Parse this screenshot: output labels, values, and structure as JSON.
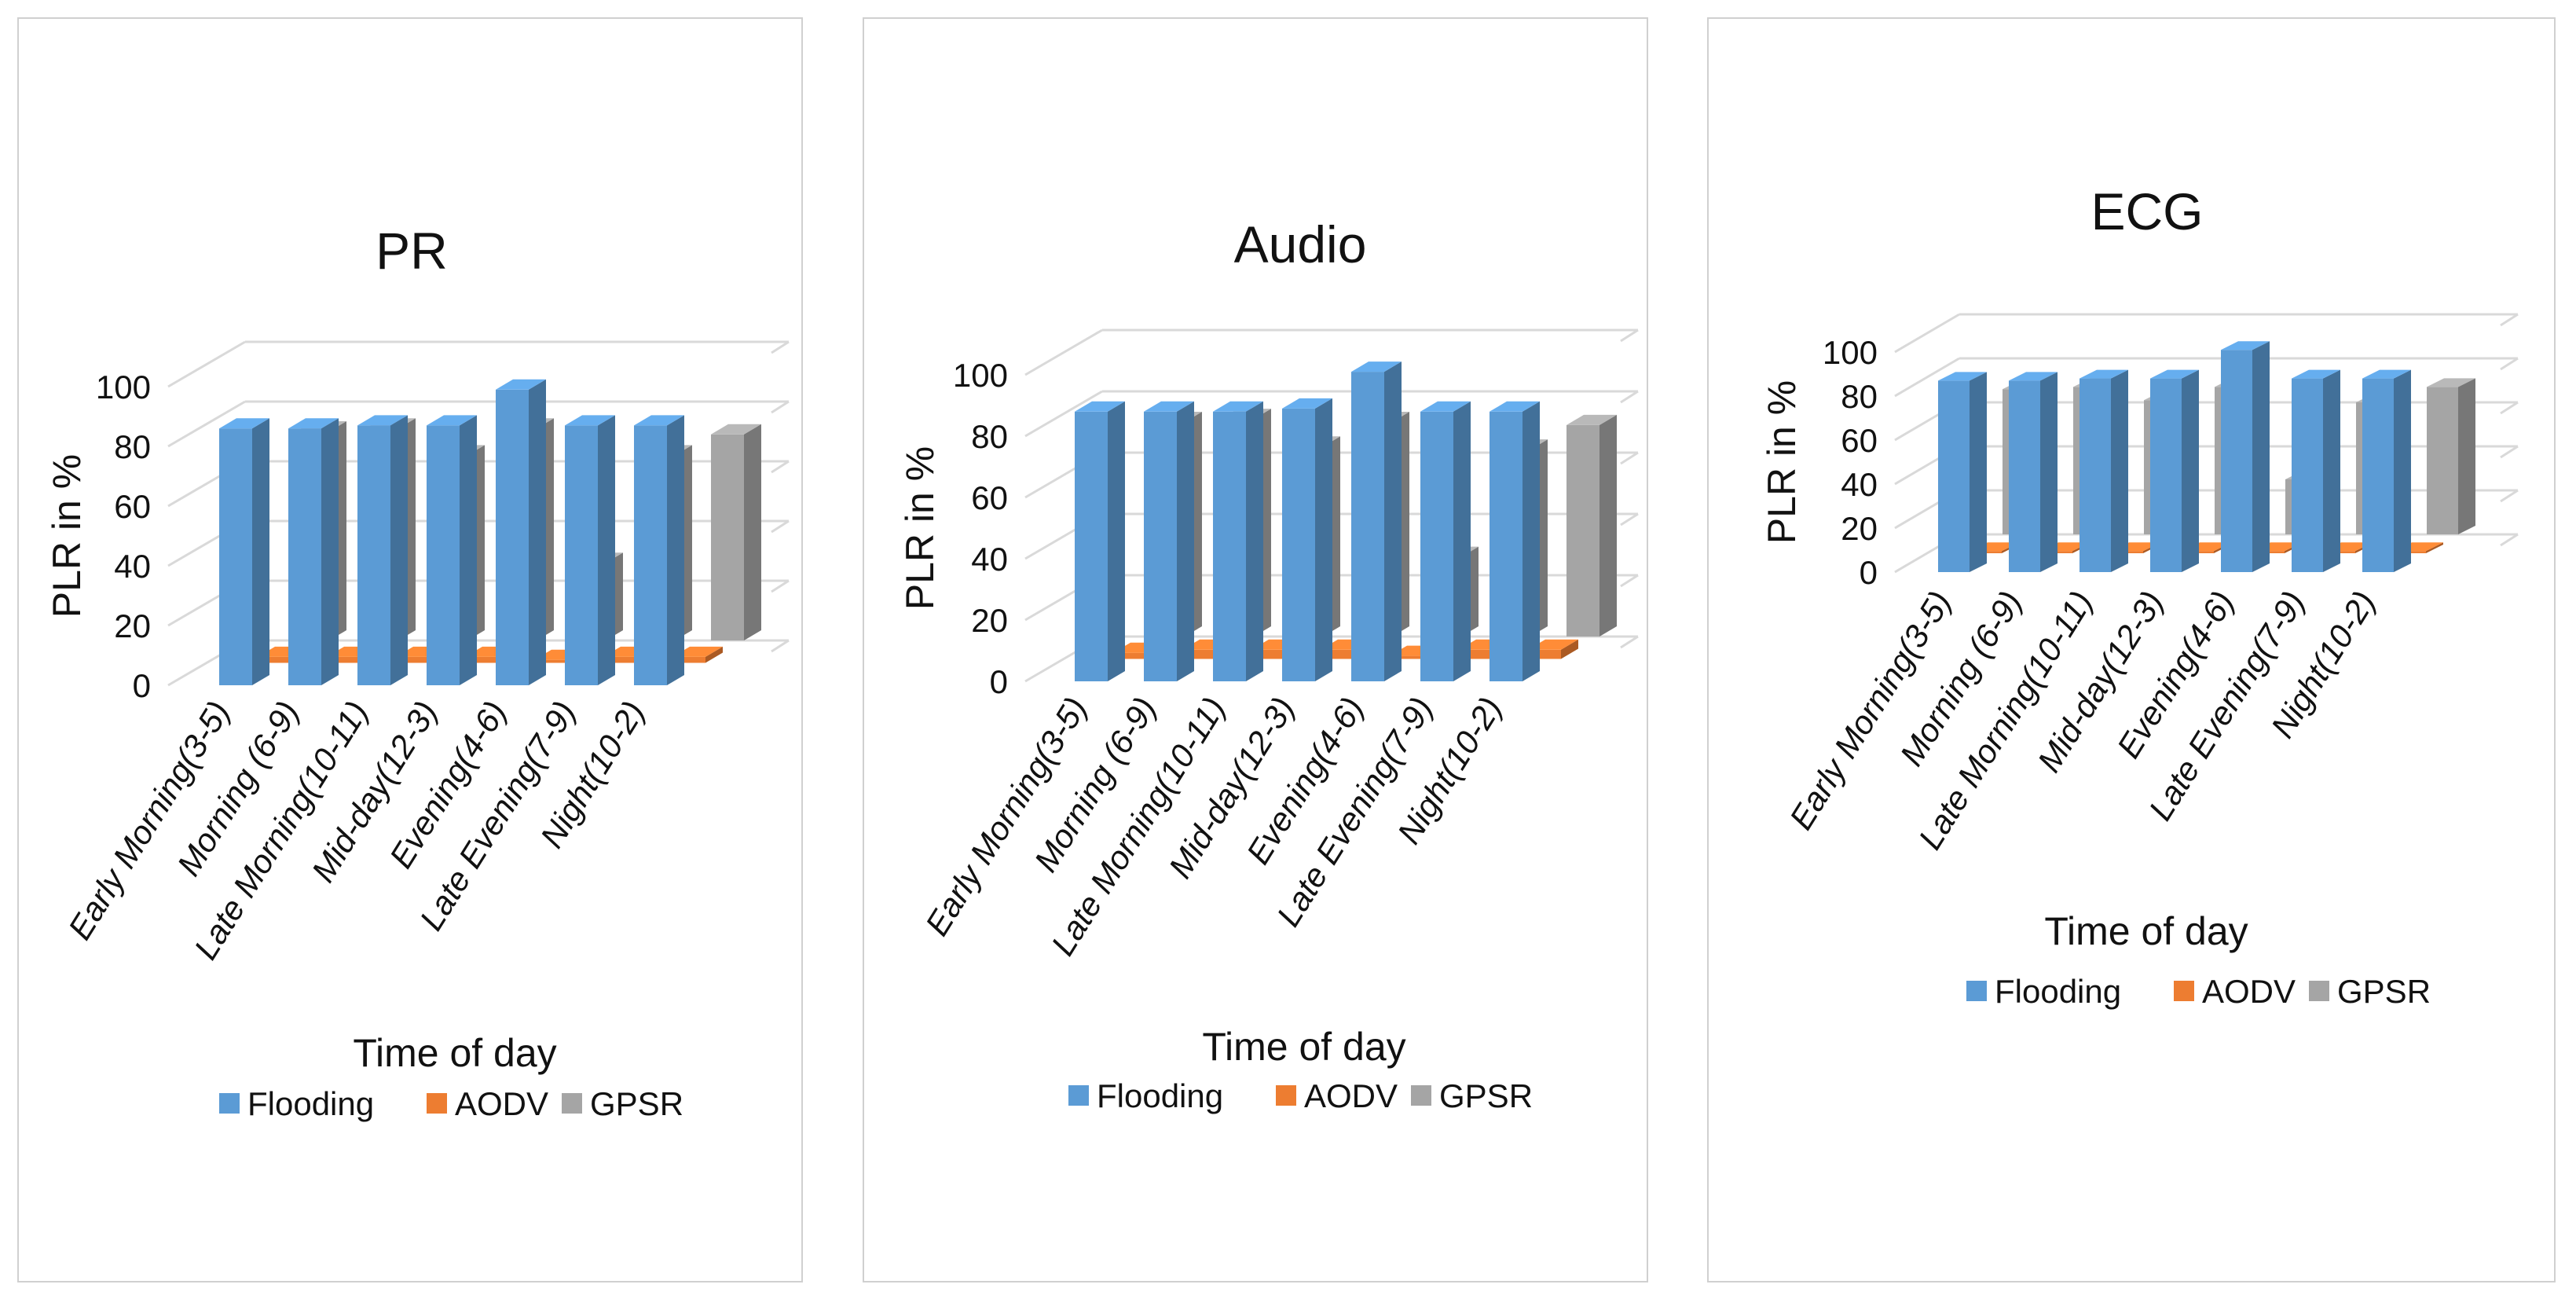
{
  "chart_data": [
    {
      "type": "bar",
      "title": "PR",
      "xlabel": "Time of day",
      "ylabel": "PLR in %",
      "ylim": [
        0,
        100
      ],
      "yticks": [
        "0",
        "20",
        "40",
        "60",
        "80",
        "100"
      ],
      "categories": [
        "Early Morning(3-5)",
        "Morning (6-9)",
        "Late Morning(10-11)",
        "Mid-day(12-3)",
        "Evening(4-6)",
        "Late Evening(7-9)",
        "Night(10-2)"
      ],
      "series": [
        {
          "name": "Flooding",
          "values": [
            86,
            86,
            87,
            87,
            99,
            87,
            87
          ]
        },
        {
          "name": "AODV",
          "values": [
            2,
            2,
            2,
            2,
            1,
            2,
            2
          ]
        },
        {
          "name": "GPSR",
          "values": [
            70,
            71,
            62,
            71,
            26,
            62,
            69
          ]
        }
      ],
      "legend": "bottom"
    },
    {
      "type": "bar",
      "title": "Audio",
      "xlabel": "Time of day",
      "ylabel": "PLR in %",
      "ylim": [
        0,
        100
      ],
      "yticks": [
        "0",
        "20",
        "40",
        "60",
        "80",
        "100"
      ],
      "categories": [
        "Early Morning(3-5)",
        "Morning (6-9)",
        "Late Morning(10-11)",
        "Mid-day(12-3)",
        "Evening(4-6)",
        "Late Evening(7-9)",
        "Night(10-2)"
      ],
      "series": [
        {
          "name": "Flooding",
          "values": [
            88,
            88,
            88,
            89,
            101,
            88,
            88
          ]
        },
        {
          "name": "AODV",
          "values": [
            2,
            3,
            3,
            3,
            1,
            3,
            3
          ]
        },
        {
          "name": "GPSR",
          "values": [
            70,
            71,
            62,
            70,
            26,
            61,
            69
          ]
        }
      ],
      "legend": "bottom"
    },
    {
      "type": "bar",
      "title": "ECG",
      "xlabel": "Time of day",
      "ylabel": "PLR in %",
      "ylim": [
        0,
        100
      ],
      "yticks": [
        "0",
        "20",
        "40",
        "60",
        "80",
        "100"
      ],
      "categories": [
        "Early Morning(3-5)",
        "Morning (6-9)",
        "Late Morning(10-11)",
        "Mid-day(12-3)",
        "Evening(4-6)",
        "Late Evening(7-9)",
        "Night(10-2)"
      ],
      "series": [
        {
          "name": "Flooding",
          "values": [
            87,
            87,
            88,
            88,
            101,
            88,
            88
          ]
        },
        {
          "name": "AODV",
          "values": [
            1,
            1,
            1,
            1,
            1,
            1,
            1
          ]
        },
        {
          "name": "GPSR",
          "values": [
            66,
            67,
            61,
            67,
            25,
            60,
            67
          ]
        }
      ],
      "legend": "bottom"
    }
  ],
  "colors": {
    "Flooding": "#5b9bd5",
    "AODV": "#ed7d31",
    "GPSR": "#a5a5a5"
  }
}
